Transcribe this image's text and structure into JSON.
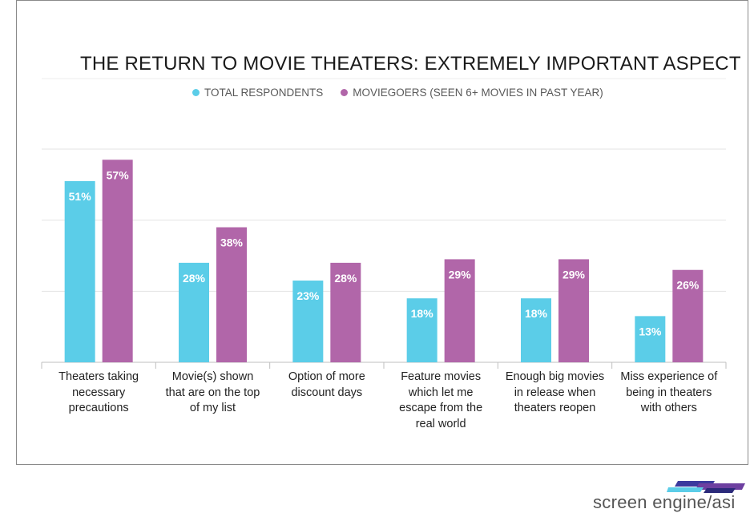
{
  "chart_data": {
    "type": "bar",
    "title": "THE RETURN TO MOVIE THEATERS: EXTREMELY IMPORTANT ASPECT",
    "categories": [
      "Theaters taking necessary precautions",
      "Movie(s) shown that are on the top of my list",
      "Option of more discount days",
      "Feature movies which let me escape from the real world",
      "Enough big movies in release when theaters reopen",
      "Miss experience of being in theaters with others"
    ],
    "category_lines": [
      [
        "Theaters taking",
        "necessary",
        "precautions"
      ],
      [
        "Movie(s) shown",
        "that are on the top",
        "of my list"
      ],
      [
        "Option of more",
        "discount days"
      ],
      [
        "Feature movies",
        "which let me",
        "escape from the",
        "real world"
      ],
      [
        "Enough big movies",
        "in release when",
        "theaters reopen"
      ],
      [
        "Miss experience of",
        "being in theaters",
        "with others"
      ]
    ],
    "series": [
      {
        "name": "TOTAL RESPONDENTS",
        "color": "#5bcde8",
        "values": [
          51,
          28,
          23,
          18,
          18,
          13
        ],
        "labels": [
          "51%",
          "28%",
          "23%",
          "18%",
          "18%",
          "13%"
        ]
      },
      {
        "name": "MOVIEGOERS (SEEN 6+ MOVIES IN PAST YEAR)",
        "color": "#b166a9",
        "values": [
          57,
          38,
          28,
          29,
          29,
          26
        ],
        "labels": [
          "57%",
          "38%",
          "28%",
          "29%",
          "29%",
          "26%"
        ]
      }
    ],
    "ylim": [
      0,
      60
    ],
    "gridlines": [
      0,
      20,
      40,
      60
    ],
    "grid": true,
    "legend_position": "top",
    "data_labels": true
  },
  "brand": {
    "text": "screen engine/asi",
    "colors": [
      "#3b3a9e",
      "#6d3fa0",
      "#5bcde8"
    ]
  }
}
